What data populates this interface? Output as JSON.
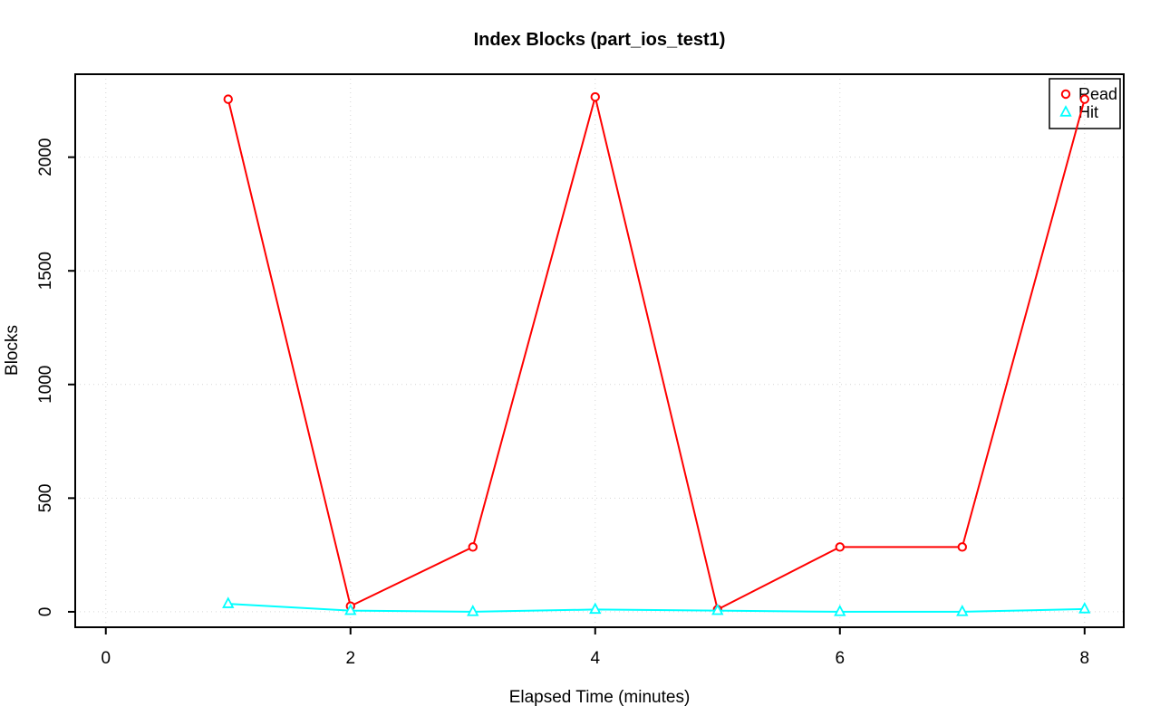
{
  "chart_data": {
    "type": "line",
    "title": "Index Blocks (part_ios_test1)",
    "xlabel": "Elapsed Time (minutes)",
    "ylabel": "Blocks",
    "x": [
      1,
      2,
      3,
      4,
      5,
      6,
      7,
      8
    ],
    "series": [
      {
        "name": "Read",
        "color": "#ff0000",
        "marker": "circle",
        "values": [
          2255,
          25,
          285,
          2265,
          10,
          285,
          285,
          2255
        ]
      },
      {
        "name": "Hit",
        "color": "#00ffff",
        "marker": "triangle",
        "values": [
          35,
          5,
          0,
          10,
          5,
          0,
          0,
          12
        ]
      }
    ],
    "x_ticks": [
      0,
      2,
      4,
      6,
      8
    ],
    "y_ticks": [
      0,
      500,
      1000,
      1500,
      2000
    ],
    "xlim": [
      -0.25,
      8.32
    ],
    "ylim": [
      -68,
      2365
    ],
    "grid": "dotted",
    "grid_color": "#d6d6d6",
    "axis_color": "#000000",
    "background": "#ffffff",
    "legend": {
      "position": "top-right",
      "border": true
    }
  }
}
